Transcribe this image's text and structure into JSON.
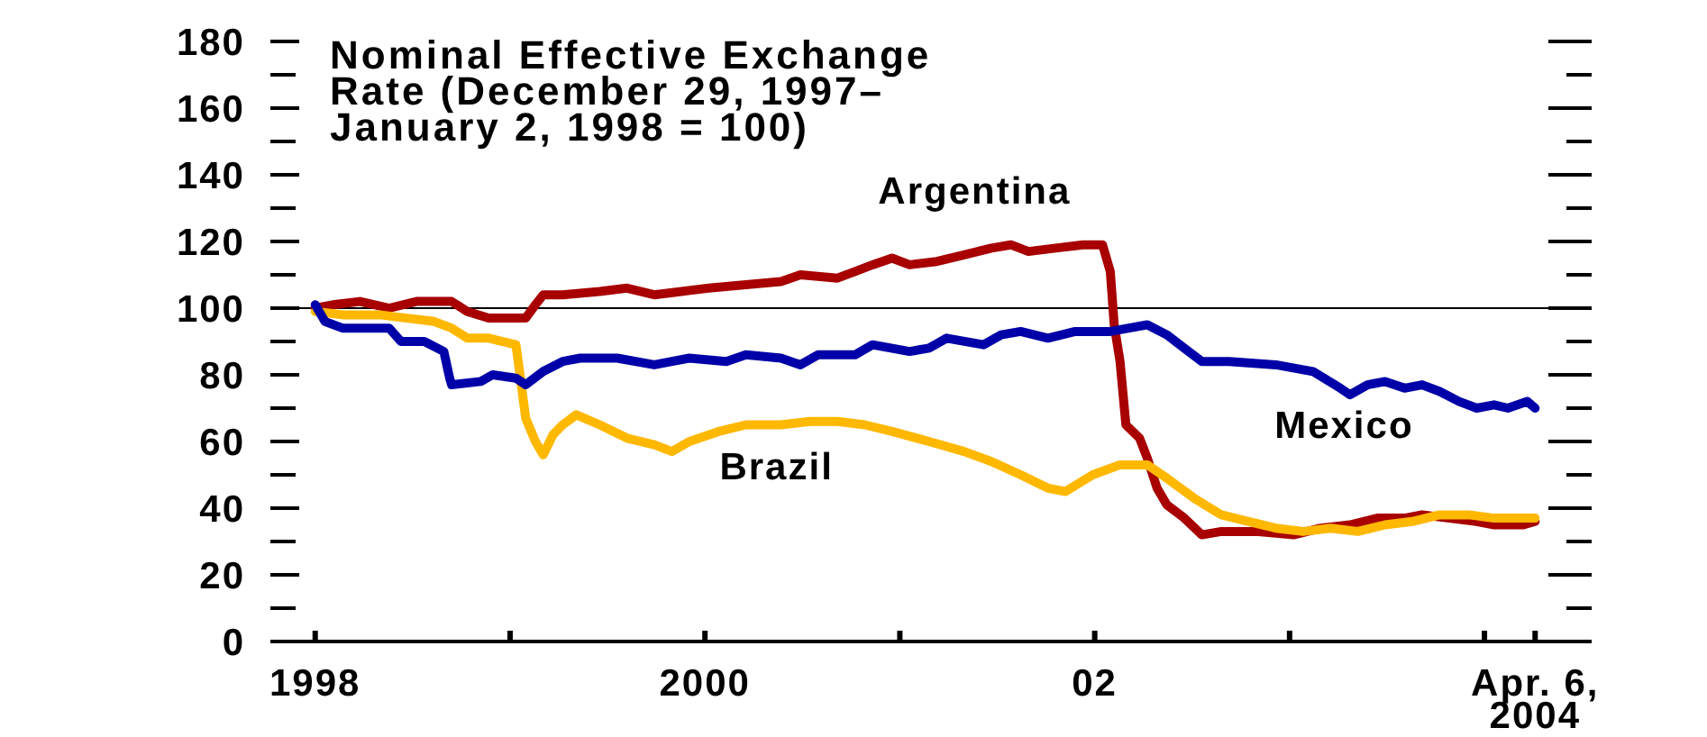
{
  "chart_data": {
    "type": "line",
    "title": "Nominal Effective Exchange Rate (December 29, 1997–January 2, 1998 = 100)",
    "xlim": [
      1997.77,
      2004.55
    ],
    "xticks": [
      1998,
      {
        "value": 1999,
        "label": null
      },
      2000,
      {
        "value": 2001,
        "label": null
      },
      {
        "value": 2002,
        "label": "02"
      },
      {
        "value": 2003,
        "label": null
      },
      {
        "value": 2004,
        "label": null
      },
      {
        "value": 2004.26,
        "label": "Apr. 6, 2004"
      }
    ],
    "ylim": [
      0,
      180
    ],
    "yticks": [
      0,
      {
        "value": 10,
        "label": null
      },
      20,
      {
        "value": 30,
        "label": null
      },
      40,
      {
        "value": 50,
        "label": null
      },
      60,
      {
        "value": 70,
        "label": null
      },
      80,
      {
        "value": 90,
        "label": null
      },
      100,
      {
        "value": 110,
        "label": null
      },
      120,
      {
        "value": 130,
        "label": null
      },
      140,
      {
        "value": 150,
        "label": null
      },
      160,
      {
        "value": 170,
        "label": null
      },
      180
    ],
    "grid": false,
    "legend": false,
    "marker": "none",
    "line_style": "solid",
    "ref_lines": [
      {
        "axis": "y",
        "value": 100,
        "label": null,
        "color": "#000000"
      }
    ],
    "series": [
      {
        "name": "Argentina",
        "color": "#a80000",
        "x": [
          1998.0,
          1998.09,
          1998.23,
          1998.38,
          1998.52,
          1998.7,
          1998.78,
          1998.89,
          1999.03,
          1999.08,
          1999.13,
          1999.17,
          1999.27,
          1999.46,
          1999.6,
          1999.74,
          1999.88,
          2000.02,
          2000.21,
          2000.39,
          2000.49,
          2000.68,
          2000.77,
          2000.86,
          2000.96,
          2001.05,
          2001.19,
          2001.33,
          2001.47,
          2001.57,
          2001.66,
          2001.8,
          2001.94,
          2002.04,
          2002.08,
          2002.1,
          2002.13,
          2002.16,
          2002.23,
          2002.27,
          2002.32,
          2002.37,
          2002.46,
          2002.55,
          2002.65,
          2002.84,
          2003.02,
          2003.16,
          2003.31,
          2003.45,
          2003.59,
          2003.68,
          2003.82,
          2003.96,
          2004.05,
          2004.2,
          2004.26
        ],
        "values": [
          100,
          101,
          102,
          100,
          102,
          102,
          99,
          97,
          97,
          97,
          101,
          104,
          104,
          105,
          106,
          104,
          105,
          106,
          107,
          108,
          110,
          109,
          111,
          113,
          115,
          113,
          114,
          116,
          118,
          119,
          117,
          118,
          119,
          119,
          111,
          95,
          84,
          65,
          61,
          55,
          46,
          41,
          37,
          32,
          33,
          33,
          32,
          34,
          35,
          37,
          37,
          38,
          37,
          36,
          35,
          35,
          36
        ]
      },
      {
        "name": "Brazil",
        "color": "#ffb800",
        "x": [
          1998.0,
          1998.14,
          1998.33,
          1998.47,
          1998.61,
          1998.7,
          1998.78,
          1998.89,
          1999.03,
          1999.06,
          1999.08,
          1999.13,
          1999.17,
          1999.22,
          1999.27,
          1999.34,
          1999.46,
          1999.6,
          1999.74,
          1999.83,
          1999.92,
          2000.07,
          2000.21,
          2000.39,
          2000.54,
          2000.68,
          2000.82,
          2000.96,
          2001.15,
          2001.33,
          2001.47,
          2001.62,
          2001.76,
          2001.85,
          2001.99,
          2002.13,
          2002.27,
          2002.37,
          2002.51,
          2002.65,
          2002.79,
          2002.93,
          2003.07,
          2003.21,
          2003.35,
          2003.49,
          2003.63,
          2003.77,
          2003.92,
          2004.05,
          2004.2,
          2004.26
        ],
        "values": [
          99,
          98,
          98,
          97,
          96,
          94,
          91,
          91,
          89,
          76,
          67,
          60,
          56,
          62,
          65,
          68,
          65,
          61,
          59,
          57,
          60,
          63,
          65,
          65,
          66,
          66,
          65,
          63,
          60,
          57,
          54,
          50,
          46,
          45,
          50,
          53,
          53,
          49,
          43,
          38,
          36,
          34,
          33,
          34,
          33,
          35,
          36,
          38,
          38,
          37,
          37,
          37
        ]
      },
      {
        "name": "Mexico",
        "color": "#0000a8",
        "x": [
          1998.0,
          1998.05,
          1998.14,
          1998.38,
          1998.44,
          1998.56,
          1998.66,
          1998.69,
          1998.7,
          1998.85,
          1998.91,
          1999.03,
          1999.08,
          1999.17,
          1999.27,
          1999.36,
          1999.55,
          1999.74,
          1999.92,
          2000.11,
          2000.21,
          2000.39,
          2000.49,
          2000.58,
          2000.77,
          2000.86,
          2001.05,
          2001.15,
          2001.24,
          2001.43,
          2001.52,
          2001.62,
          2001.76,
          2001.9,
          2002.08,
          2002.27,
          2002.37,
          2002.46,
          2002.55,
          2002.69,
          2002.93,
          2003.12,
          2003.26,
          2003.31,
          2003.4,
          2003.49,
          2003.59,
          2003.68,
          2003.77,
          2003.87,
          2003.96,
          2004.05,
          2004.12,
          2004.22,
          2004.26
        ],
        "values": [
          101,
          96,
          94,
          94,
          90,
          90,
          87,
          79,
          77,
          78,
          80,
          79,
          77,
          81,
          84,
          85,
          85,
          83,
          85,
          84,
          86,
          85,
          83,
          86,
          86,
          89,
          87,
          88,
          91,
          89,
          92,
          93,
          91,
          93,
          93,
          95,
          92,
          88,
          84,
          84,
          83,
          81,
          76,
          74,
          77,
          78,
          76,
          77,
          75,
          72,
          70,
          71,
          70,
          72,
          70
        ]
      }
    ]
  }
}
